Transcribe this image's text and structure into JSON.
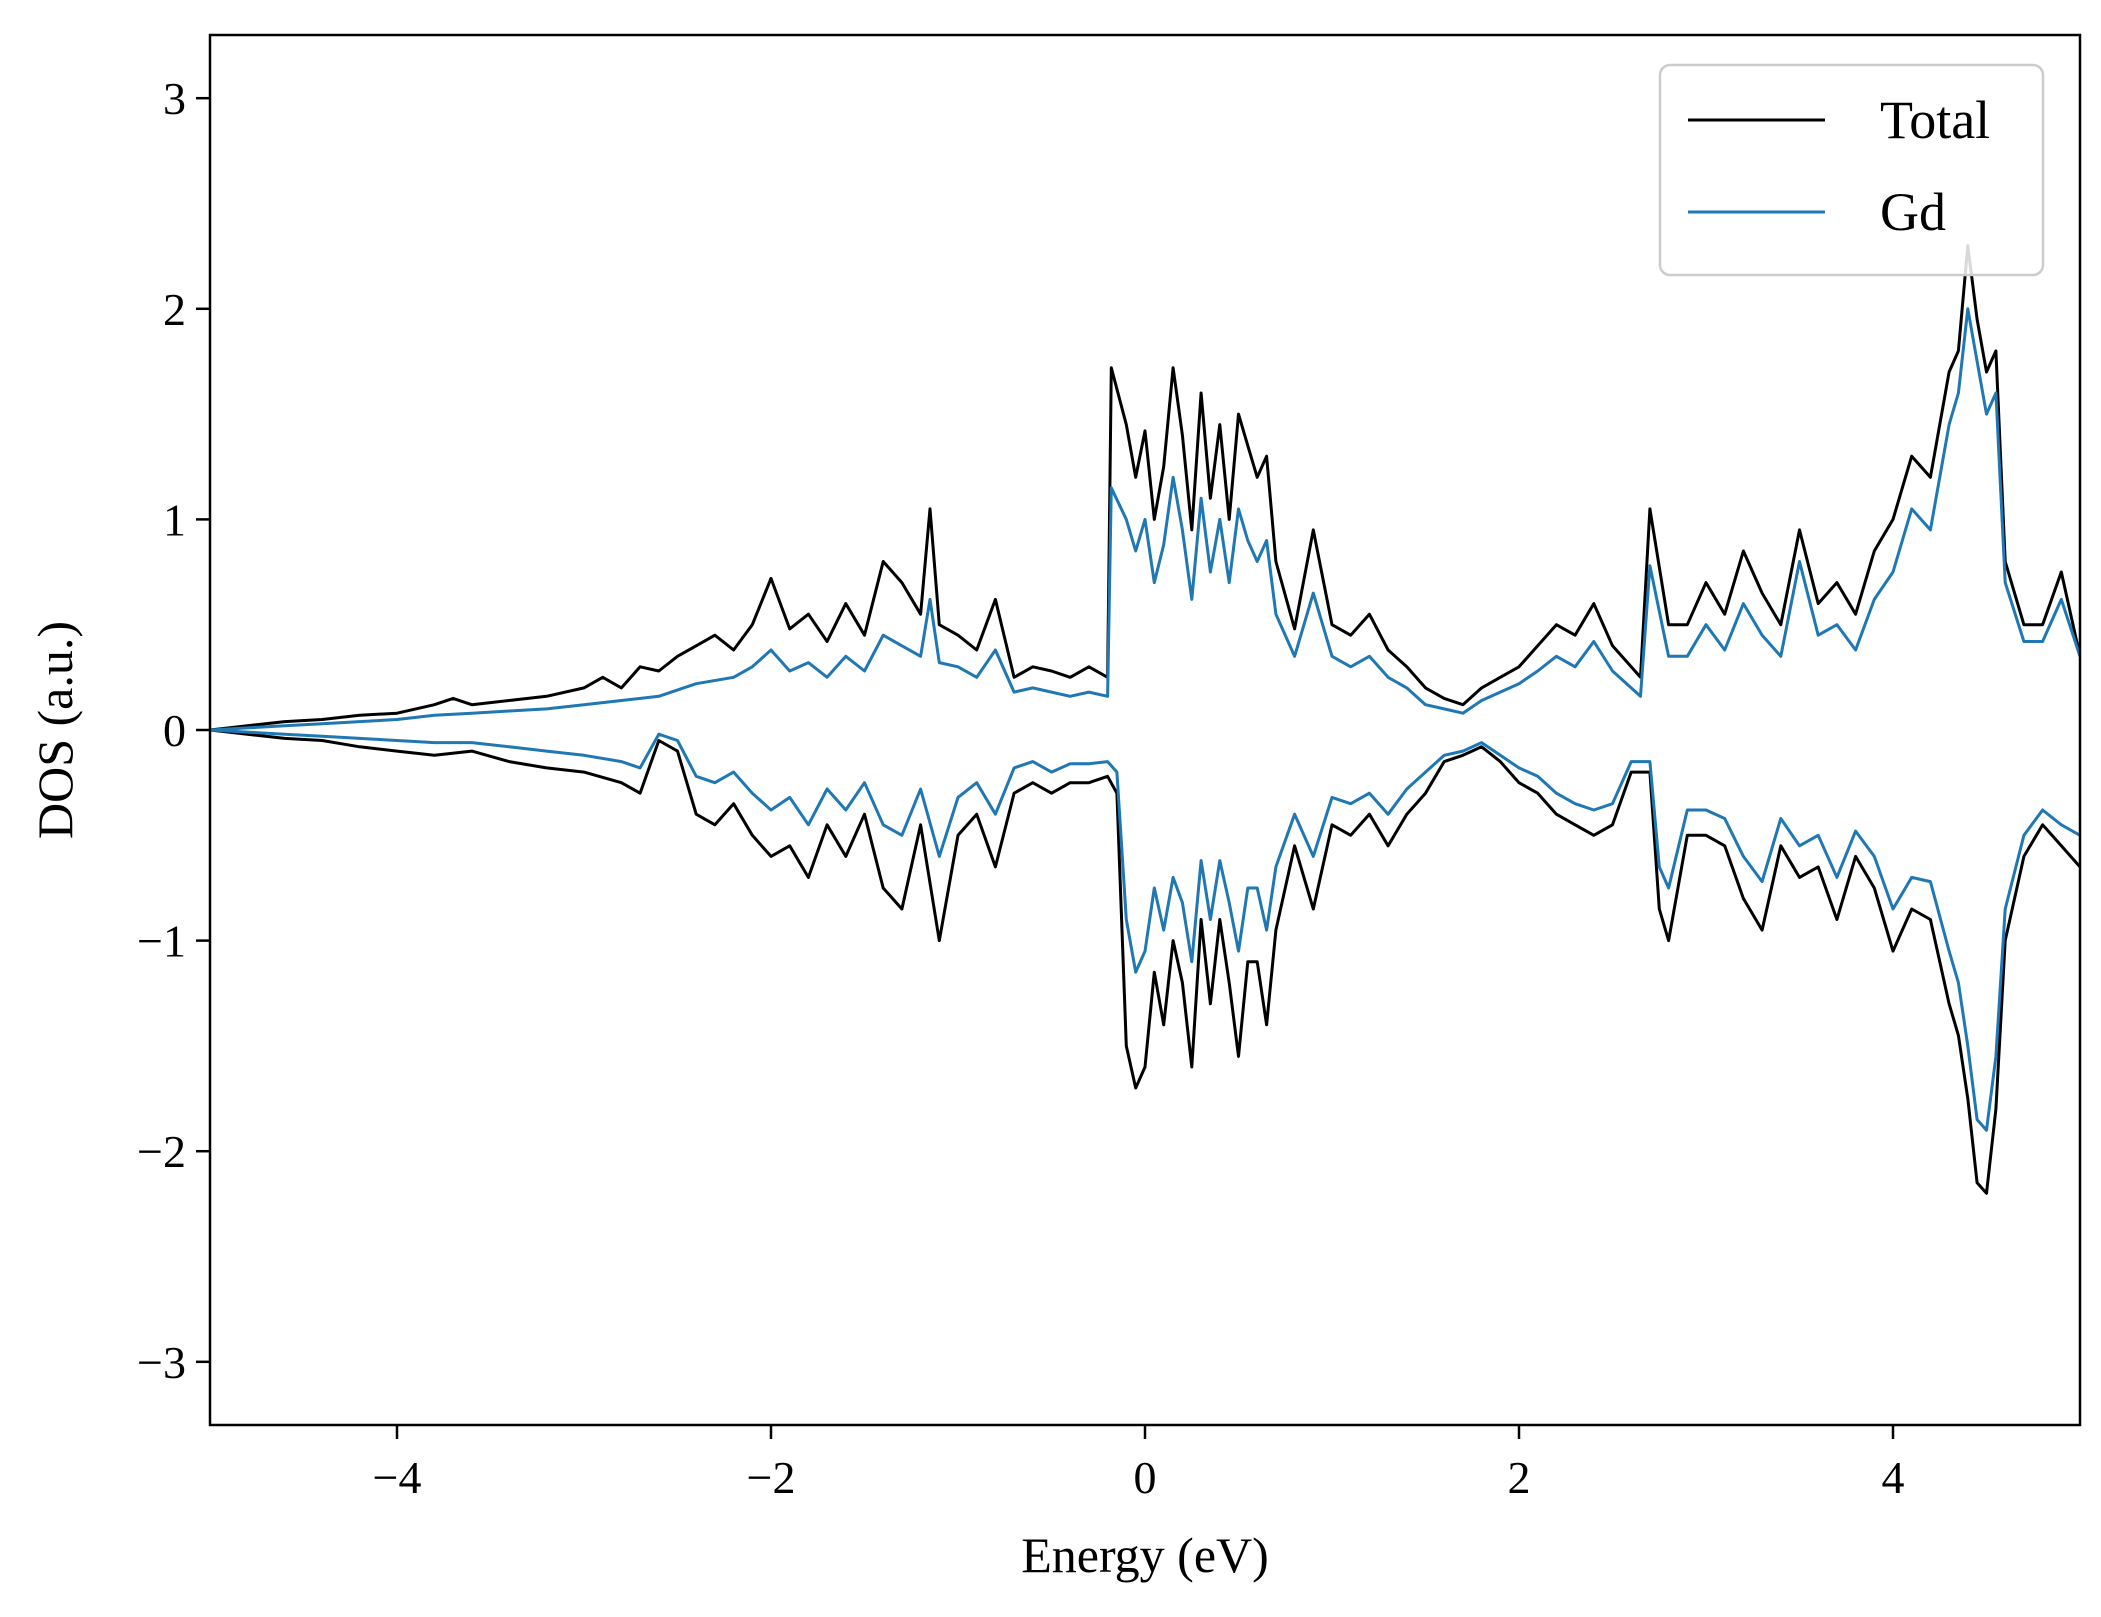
{
  "chart_data": {
    "type": "line",
    "xlabel": "Energy (eV)",
    "ylabel": "DOS (a.u.)",
    "xlim": [
      -5,
      5
    ],
    "ylim": [
      -3.3,
      3.3
    ],
    "xticks": [
      -4,
      -2,
      0,
      2,
      4
    ],
    "yticks": [
      -3,
      -2,
      -1,
      0,
      1,
      2,
      3
    ],
    "xtick_labels": [
      "−4",
      "−2",
      "0",
      "2",
      "4"
    ],
    "ytick_labels": [
      "−3",
      "−2",
      "−1",
      "0",
      "1",
      "2",
      "3"
    ],
    "grid": false,
    "legend_position": "top-right",
    "series": [
      {
        "name": "Total",
        "color": "#000000",
        "spin": "up",
        "x": [
          -5.0,
          -4.8,
          -4.6,
          -4.4,
          -4.2,
          -4.0,
          -3.8,
          -3.7,
          -3.6,
          -3.4,
          -3.2,
          -3.0,
          -2.9,
          -2.8,
          -2.7,
          -2.6,
          -2.5,
          -2.4,
          -2.3,
          -2.2,
          -2.1,
          -2.0,
          -1.9,
          -1.8,
          -1.7,
          -1.6,
          -1.5,
          -1.4,
          -1.3,
          -1.2,
          -1.15,
          -1.1,
          -1.0,
          -0.9,
          -0.8,
          -0.7,
          -0.6,
          -0.5,
          -0.4,
          -0.3,
          -0.2,
          -0.18,
          -0.1,
          -0.05,
          0.0,
          0.05,
          0.1,
          0.15,
          0.2,
          0.25,
          0.3,
          0.35,
          0.4,
          0.45,
          0.5,
          0.55,
          0.6,
          0.65,
          0.7,
          0.8,
          0.9,
          1.0,
          1.1,
          1.2,
          1.3,
          1.4,
          1.5,
          1.6,
          1.7,
          1.8,
          1.9,
          2.0,
          2.1,
          2.2,
          2.3,
          2.4,
          2.5,
          2.6,
          2.65,
          2.7,
          2.8,
          2.9,
          3.0,
          3.1,
          3.2,
          3.3,
          3.4,
          3.5,
          3.6,
          3.7,
          3.8,
          3.9,
          4.0,
          4.1,
          4.2,
          4.3,
          4.35,
          4.4,
          4.45,
          4.5,
          4.55,
          4.6,
          4.7,
          4.8,
          4.9,
          5.0
        ],
        "y": [
          0.0,
          0.02,
          0.04,
          0.05,
          0.07,
          0.08,
          0.12,
          0.15,
          0.12,
          0.14,
          0.16,
          0.2,
          0.25,
          0.2,
          0.3,
          0.28,
          0.35,
          0.4,
          0.45,
          0.38,
          0.5,
          0.72,
          0.48,
          0.55,
          0.42,
          0.6,
          0.45,
          0.8,
          0.7,
          0.55,
          1.05,
          0.5,
          0.45,
          0.38,
          0.62,
          0.25,
          0.3,
          0.28,
          0.25,
          0.3,
          0.25,
          1.72,
          1.45,
          1.2,
          1.42,
          1.0,
          1.25,
          1.72,
          1.4,
          0.95,
          1.6,
          1.1,
          1.45,
          1.0,
          1.5,
          1.35,
          1.2,
          1.3,
          0.8,
          0.48,
          0.95,
          0.5,
          0.45,
          0.55,
          0.38,
          0.3,
          0.2,
          0.15,
          0.12,
          0.2,
          0.25,
          0.3,
          0.4,
          0.5,
          0.45,
          0.6,
          0.4,
          0.3,
          0.25,
          1.05,
          0.5,
          0.5,
          0.7,
          0.55,
          0.85,
          0.65,
          0.5,
          0.95,
          0.6,
          0.7,
          0.55,
          0.85,
          1.0,
          1.3,
          1.2,
          1.7,
          1.8,
          2.3,
          1.95,
          1.7,
          1.8,
          0.8,
          0.5,
          0.5,
          0.75,
          0.35
        ]
      },
      {
        "name": "Gd",
        "color": "#1f77b4",
        "spin": "up",
        "x": [
          -5.0,
          -4.8,
          -4.6,
          -4.4,
          -4.2,
          -4.0,
          -3.8,
          -3.6,
          -3.4,
          -3.2,
          -3.0,
          -2.8,
          -2.6,
          -2.4,
          -2.2,
          -2.1,
          -2.0,
          -1.9,
          -1.8,
          -1.7,
          -1.6,
          -1.5,
          -1.4,
          -1.3,
          -1.2,
          -1.15,
          -1.1,
          -1.0,
          -0.9,
          -0.8,
          -0.7,
          -0.6,
          -0.5,
          -0.4,
          -0.3,
          -0.2,
          -0.18,
          -0.1,
          -0.05,
          0.0,
          0.05,
          0.1,
          0.15,
          0.2,
          0.25,
          0.3,
          0.35,
          0.4,
          0.45,
          0.5,
          0.55,
          0.6,
          0.65,
          0.7,
          0.8,
          0.9,
          1.0,
          1.1,
          1.2,
          1.3,
          1.4,
          1.5,
          1.6,
          1.7,
          1.8,
          1.9,
          2.0,
          2.1,
          2.2,
          2.3,
          2.4,
          2.5,
          2.6,
          2.65,
          2.7,
          2.8,
          2.9,
          3.0,
          3.1,
          3.2,
          3.3,
          3.4,
          3.5,
          3.6,
          3.7,
          3.8,
          3.9,
          4.0,
          4.1,
          4.2,
          4.3,
          4.35,
          4.4,
          4.45,
          4.5,
          4.55,
          4.6,
          4.7,
          4.8,
          4.9,
          5.0
        ],
        "y": [
          0.0,
          0.01,
          0.02,
          0.03,
          0.04,
          0.05,
          0.07,
          0.08,
          0.09,
          0.1,
          0.12,
          0.14,
          0.16,
          0.22,
          0.25,
          0.3,
          0.38,
          0.28,
          0.32,
          0.25,
          0.35,
          0.28,
          0.45,
          0.4,
          0.35,
          0.62,
          0.32,
          0.3,
          0.25,
          0.38,
          0.18,
          0.2,
          0.18,
          0.16,
          0.18,
          0.16,
          1.15,
          1.0,
          0.85,
          1.0,
          0.7,
          0.88,
          1.2,
          0.95,
          0.62,
          1.1,
          0.75,
          1.0,
          0.7,
          1.05,
          0.9,
          0.8,
          0.9,
          0.55,
          0.35,
          0.65,
          0.35,
          0.3,
          0.35,
          0.25,
          0.2,
          0.12,
          0.1,
          0.08,
          0.14,
          0.18,
          0.22,
          0.28,
          0.35,
          0.3,
          0.42,
          0.28,
          0.2,
          0.16,
          0.78,
          0.35,
          0.35,
          0.5,
          0.38,
          0.6,
          0.45,
          0.35,
          0.8,
          0.45,
          0.5,
          0.38,
          0.62,
          0.75,
          1.05,
          0.95,
          1.45,
          1.6,
          2.0,
          1.75,
          1.5,
          1.6,
          0.7,
          0.42,
          0.42,
          0.62,
          0.35
        ]
      },
      {
        "name": "Total",
        "color": "#000000",
        "spin": "down",
        "x": [
          -5.0,
          -4.8,
          -4.6,
          -4.4,
          -4.2,
          -4.0,
          -3.8,
          -3.6,
          -3.4,
          -3.2,
          -3.0,
          -2.8,
          -2.7,
          -2.6,
          -2.5,
          -2.4,
          -2.3,
          -2.2,
          -2.1,
          -2.0,
          -1.9,
          -1.8,
          -1.7,
          -1.6,
          -1.5,
          -1.4,
          -1.3,
          -1.2,
          -1.1,
          -1.0,
          -0.9,
          -0.8,
          -0.7,
          -0.6,
          -0.5,
          -0.4,
          -0.3,
          -0.2,
          -0.15,
          -0.1,
          -0.05,
          0.0,
          0.05,
          0.1,
          0.15,
          0.2,
          0.25,
          0.3,
          0.35,
          0.4,
          0.45,
          0.5,
          0.55,
          0.6,
          0.65,
          0.7,
          0.8,
          0.9,
          1.0,
          1.1,
          1.2,
          1.3,
          1.4,
          1.5,
          1.6,
          1.7,
          1.8,
          1.9,
          2.0,
          2.1,
          2.2,
          2.3,
          2.4,
          2.5,
          2.6,
          2.7,
          2.75,
          2.8,
          2.9,
          3.0,
          3.1,
          3.2,
          3.3,
          3.4,
          3.5,
          3.6,
          3.7,
          3.8,
          3.9,
          4.0,
          4.1,
          4.2,
          4.3,
          4.35,
          4.4,
          4.45,
          4.5,
          4.55,
          4.6,
          4.7,
          4.8,
          4.9,
          5.0
        ],
        "y": [
          0.0,
          -0.02,
          -0.04,
          -0.05,
          -0.08,
          -0.1,
          -0.12,
          -0.1,
          -0.15,
          -0.18,
          -0.2,
          -0.25,
          -0.3,
          -0.05,
          -0.1,
          -0.4,
          -0.45,
          -0.35,
          -0.5,
          -0.6,
          -0.55,
          -0.7,
          -0.45,
          -0.6,
          -0.4,
          -0.75,
          -0.85,
          -0.45,
          -1.0,
          -0.5,
          -0.4,
          -0.65,
          -0.3,
          -0.25,
          -0.3,
          -0.25,
          -0.25,
          -0.22,
          -0.3,
          -1.5,
          -1.7,
          -1.6,
          -1.15,
          -1.4,
          -1.0,
          -1.2,
          -1.6,
          -0.9,
          -1.3,
          -0.9,
          -1.2,
          -1.55,
          -1.1,
          -1.1,
          -1.4,
          -0.95,
          -0.55,
          -0.85,
          -0.45,
          -0.5,
          -0.4,
          -0.55,
          -0.4,
          -0.3,
          -0.15,
          -0.12,
          -0.08,
          -0.15,
          -0.25,
          -0.3,
          -0.4,
          -0.45,
          -0.5,
          -0.45,
          -0.2,
          -0.2,
          -0.85,
          -1.0,
          -0.5,
          -0.5,
          -0.55,
          -0.8,
          -0.95,
          -0.55,
          -0.7,
          -0.65,
          -0.9,
          -0.6,
          -0.75,
          -1.05,
          -0.85,
          -0.9,
          -1.3,
          -1.45,
          -1.75,
          -2.15,
          -2.2,
          -1.8,
          -1.0,
          -0.6,
          -0.45,
          -0.55,
          -0.65
        ]
      },
      {
        "name": "Gd",
        "color": "#1f77b4",
        "spin": "down",
        "x": [
          -5.0,
          -4.8,
          -4.6,
          -4.4,
          -4.2,
          -4.0,
          -3.8,
          -3.6,
          -3.4,
          -3.2,
          -3.0,
          -2.8,
          -2.7,
          -2.6,
          -2.5,
          -2.4,
          -2.3,
          -2.2,
          -2.1,
          -2.0,
          -1.9,
          -1.8,
          -1.7,
          -1.6,
          -1.5,
          -1.4,
          -1.3,
          -1.2,
          -1.1,
          -1.0,
          -0.9,
          -0.8,
          -0.7,
          -0.6,
          -0.5,
          -0.4,
          -0.3,
          -0.2,
          -0.15,
          -0.1,
          -0.05,
          0.0,
          0.05,
          0.1,
          0.15,
          0.2,
          0.25,
          0.3,
          0.35,
          0.4,
          0.45,
          0.5,
          0.55,
          0.6,
          0.65,
          0.7,
          0.8,
          0.9,
          1.0,
          1.1,
          1.2,
          1.3,
          1.4,
          1.5,
          1.6,
          1.7,
          1.8,
          1.9,
          2.0,
          2.1,
          2.2,
          2.3,
          2.4,
          2.5,
          2.6,
          2.7,
          2.75,
          2.8,
          2.9,
          3.0,
          3.1,
          3.2,
          3.3,
          3.4,
          3.5,
          3.6,
          3.7,
          3.8,
          3.9,
          4.0,
          4.1,
          4.2,
          4.3,
          4.35,
          4.4,
          4.45,
          4.5,
          4.55,
          4.6,
          4.7,
          4.8,
          4.9,
          5.0
        ],
        "y": [
          0.0,
          -0.01,
          -0.02,
          -0.03,
          -0.04,
          -0.05,
          -0.06,
          -0.06,
          -0.08,
          -0.1,
          -0.12,
          -0.15,
          -0.18,
          -0.02,
          -0.05,
          -0.22,
          -0.25,
          -0.2,
          -0.3,
          -0.38,
          -0.32,
          -0.45,
          -0.28,
          -0.38,
          -0.25,
          -0.45,
          -0.5,
          -0.28,
          -0.6,
          -0.32,
          -0.25,
          -0.4,
          -0.18,
          -0.15,
          -0.2,
          -0.16,
          -0.16,
          -0.15,
          -0.2,
          -0.9,
          -1.15,
          -1.05,
          -0.75,
          -0.95,
          -0.7,
          -0.82,
          -1.1,
          -0.62,
          -0.9,
          -0.62,
          -0.82,
          -1.05,
          -0.75,
          -0.75,
          -0.95,
          -0.65,
          -0.4,
          -0.6,
          -0.32,
          -0.35,
          -0.3,
          -0.4,
          -0.28,
          -0.2,
          -0.12,
          -0.1,
          -0.06,
          -0.12,
          -0.18,
          -0.22,
          -0.3,
          -0.35,
          -0.38,
          -0.35,
          -0.15,
          -0.15,
          -0.65,
          -0.75,
          -0.38,
          -0.38,
          -0.42,
          -0.6,
          -0.72,
          -0.42,
          -0.55,
          -0.5,
          -0.7,
          -0.48,
          -0.6,
          -0.85,
          -0.7,
          -0.72,
          -1.05,
          -1.2,
          -1.5,
          -1.85,
          -1.9,
          -1.55,
          -0.85,
          -0.5,
          -0.38,
          -0.45,
          -0.5
        ]
      }
    ]
  }
}
